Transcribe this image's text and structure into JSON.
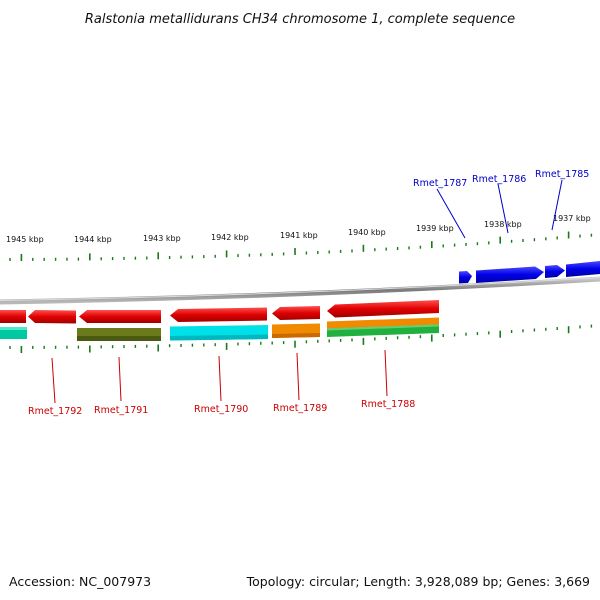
{
  "title": "Ralstonia metallidurans CH34 chromosome 1, complete sequence",
  "footer": {
    "accession": "Accession: NC_007973",
    "summary": "Topology: circular; Length: 3,928,089 bp; Genes: 3,669"
  },
  "colors": {
    "backbone": "#8a8a8a",
    "tick": "#1a7a1a",
    "forward_gene": "#0000ee",
    "reverse_gene": "#ee0000",
    "forward_label": "#0000cc",
    "reverse_label": "#cc0000"
  },
  "ruler": {
    "labels": [
      "1945 kbp",
      "1944 kbp",
      "1943 kbp",
      "1942 kbp",
      "1941 kbp",
      "1940 kbp",
      "1939 kbp",
      "1938 kbp",
      "1937 kbp"
    ]
  },
  "genes": {
    "forward": [
      "Rmet_1787",
      "Rmet_1786",
      "Rmet_1785"
    ],
    "reverse": [
      "Rmet_1792",
      "Rmet_1791",
      "Rmet_1790",
      "Rmet_1789",
      "Rmet_1788"
    ]
  },
  "feature_colors": {
    "cog_bars": [
      "#00c8a0",
      "#6b7a1a",
      "#00e0e8",
      "#f08a00",
      "#f08a00",
      "#20b040"
    ]
  }
}
